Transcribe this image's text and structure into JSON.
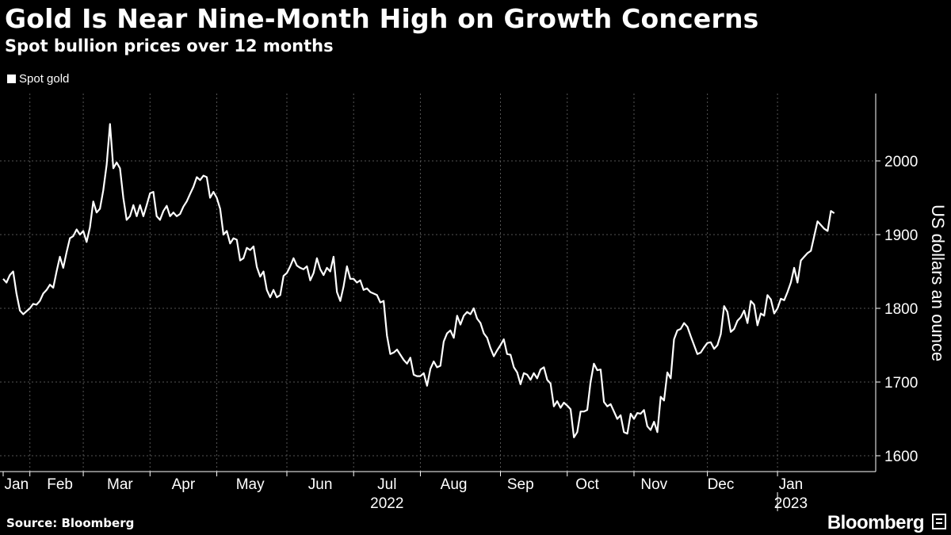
{
  "title": "Gold Is Near Nine-Month High on Growth Concerns",
  "subtitle": "Spot bullion prices over 12 months",
  "source": "Source: Bloomberg",
  "brand": "Bloomberg",
  "colors": {
    "background": "#000000",
    "line": "#ffffff",
    "grid": "#555555"
  },
  "chart_data": {
    "type": "line",
    "title": "Gold Is Near Nine-Month High on Growth Concerns",
    "subtitle": "Spot bullion prices over 12 months",
    "ylabel": "US dollars an ounce",
    "xlabel": "",
    "ylim": [
      1578,
      2090
    ],
    "yticks": [
      1600,
      1700,
      1800,
      1900,
      2000
    ],
    "legend": {
      "position": "top-left",
      "entries": [
        "Spot gold"
      ]
    },
    "grid": true,
    "x_month_labels": [
      "Jan",
      "Feb",
      "Mar",
      "Apr",
      "May",
      "Jun",
      "Jul",
      "Aug",
      "Sep",
      "Oct",
      "Nov",
      "Dec",
      "Jan"
    ],
    "x_year_labels": [
      "2022",
      "2023"
    ],
    "x_index_range": [
      0,
      260
    ],
    "month_start_index": [
      0,
      8,
      24,
      44,
      64,
      85,
      105,
      125,
      149,
      169,
      189,
      211,
      232
    ],
    "month_label_index": [
      4,
      17,
      35,
      54,
      74,
      95,
      115,
      135,
      155,
      175,
      195,
      215,
      236
    ],
    "series": [
      {
        "name": "Spot gold",
        "values": [
          1840,
          1835,
          1845,
          1850,
          1820,
          1797,
          1792,
          1796,
          1800,
          1806,
          1805,
          1810,
          1820,
          1825,
          1832,
          1828,
          1850,
          1870,
          1855,
          1876,
          1895,
          1898,
          1907,
          1900,
          1905,
          1890,
          1910,
          1945,
          1930,
          1935,
          1960,
          1995,
          2050,
          1990,
          1998,
          1990,
          1950,
          1920,
          1925,
          1940,
          1925,
          1940,
          1925,
          1940,
          1956,
          1958,
          1925,
          1920,
          1932,
          1939,
          1925,
          1930,
          1925,
          1928,
          1938,
          1945,
          1955,
          1965,
          1978,
          1974,
          1980,
          1978,
          1950,
          1958,
          1950,
          1935,
          1900,
          1905,
          1888,
          1895,
          1893,
          1865,
          1868,
          1882,
          1879,
          1884,
          1856,
          1843,
          1850,
          1825,
          1815,
          1825,
          1815,
          1818,
          1844,
          1848,
          1857,
          1868,
          1858,
          1855,
          1853,
          1857,
          1838,
          1848,
          1868,
          1853,
          1845,
          1855,
          1850,
          1870,
          1822,
          1810,
          1830,
          1857,
          1840,
          1840,
          1835,
          1838,
          1825,
          1827,
          1822,
          1820,
          1818,
          1808,
          1810,
          1763,
          1738,
          1740,
          1744,
          1737,
          1730,
          1725,
          1733,
          1710,
          1708,
          1708,
          1712,
          1695,
          1718,
          1728,
          1720,
          1722,
          1755,
          1766,
          1770,
          1760,
          1790,
          1778,
          1790,
          1795,
          1792,
          1800,
          1786,
          1780,
          1766,
          1760,
          1746,
          1735,
          1743,
          1750,
          1758,
          1738,
          1737,
          1720,
          1713,
          1697,
          1712,
          1710,
          1703,
          1712,
          1705,
          1717,
          1720,
          1703,
          1698,
          1667,
          1674,
          1665,
          1672,
          1668,
          1663,
          1625,
          1632,
          1660,
          1660,
          1662,
          1700,
          1725,
          1716,
          1717,
          1673,
          1667,
          1670,
          1660,
          1650,
          1655,
          1632,
          1630,
          1657,
          1650,
          1658,
          1657,
          1662,
          1640,
          1635,
          1646,
          1632,
          1680,
          1675,
          1713,
          1705,
          1758,
          1770,
          1772,
          1780,
          1775,
          1762,
          1750,
          1738,
          1740,
          1747,
          1753,
          1754,
          1745,
          1750,
          1765,
          1803,
          1795,
          1768,
          1772,
          1783,
          1788,
          1797,
          1780,
          1810,
          1805,
          1777,
          1793,
          1790,
          1818,
          1812,
          1793,
          1800,
          1813,
          1811,
          1822,
          1835,
          1855,
          1835,
          1865,
          1870,
          1875,
          1878,
          1898,
          1918,
          1913,
          1908,
          1905,
          1932,
          1929
        ]
      }
    ]
  }
}
